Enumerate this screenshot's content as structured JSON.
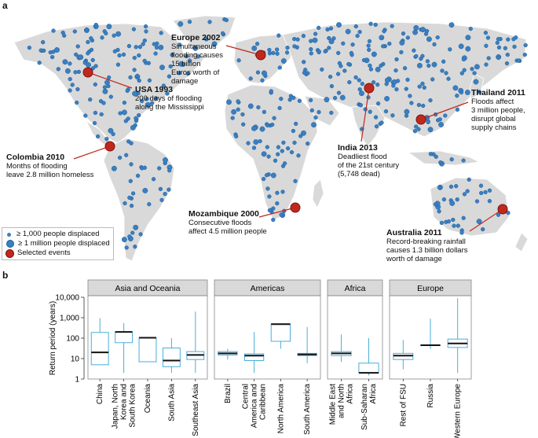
{
  "panel_a_label": "a",
  "panel_b_label": "b",
  "map": {
    "annotations": [
      {
        "id": "europe",
        "title": "Europe 2002",
        "body": [
          "Simultaneous",
          "flooding causes",
          "15 billion",
          "Euros worth of",
          "damage"
        ]
      },
      {
        "id": "usa",
        "title": "USA 1993",
        "body": [
          "200 days of flooding",
          "along the Mississippi"
        ]
      },
      {
        "id": "india",
        "title": "India 2013",
        "body": [
          "Deadliest flood",
          "of the 21st century",
          "(5,748 dead)"
        ]
      },
      {
        "id": "thailand",
        "title": "Thailand 2011",
        "body": [
          "Floods affect",
          "3 million people,",
          "disrupt global",
          "supply chains"
        ]
      },
      {
        "id": "colombia",
        "title": "Colombia 2010",
        "body": [
          "Months of flooding",
          "leave 2.8 million homeless"
        ]
      },
      {
        "id": "mozambique",
        "title": "Mozambique 2000",
        "body": [
          "Consecutive floods",
          "affect 4.5 million people"
        ]
      },
      {
        "id": "australia",
        "title": "Australia 2011",
        "body": [
          "Record-breaking rainfall",
          "causes 1.3 billion dollars",
          "worth of damage"
        ]
      }
    ],
    "legend": [
      {
        "label": "≥ 1,000 people displaced",
        "color": "#3b7fc0",
        "size": "small"
      },
      {
        "label": "≥ 1 million people displaced",
        "color": "#3b7fc0",
        "size": "large"
      },
      {
        "label": "Selected events",
        "color": "#c0281e",
        "size": "large"
      }
    ],
    "colors": {
      "land": "#d9d9d9",
      "border": "#ffffff",
      "dot": "#3b7fc0",
      "dot_stroke": "#1f5f9c",
      "event": "#c0281e"
    }
  },
  "chart_data": {
    "type": "box",
    "ylabel": "Return period (years)",
    "yscale": "log",
    "ylim": [
      1,
      10000
    ],
    "yticks": [
      "1",
      "10",
      "100",
      "1,000",
      "10,000"
    ],
    "colors": {
      "box": "#4aaed9",
      "median": "#111111",
      "header_bg": "#d9d9d9"
    },
    "groups": [
      {
        "name": "Asia and Oceania",
        "categories": [
          {
            "label": "China",
            "whisker_low": 5,
            "q1": 5,
            "median": 20,
            "q3": 190,
            "whisker_high": 950
          },
          {
            "label": "Japan, North Korea and South Korea",
            "whisker_low": 2,
            "q1": 60,
            "median": 200,
            "q3": 200,
            "whisker_high": 550
          },
          {
            "label": "Oceania",
            "whisker_low": 7,
            "q1": 7,
            "median": 105,
            "q3": 105,
            "whisker_high": 105
          },
          {
            "label": "South Asia",
            "whisker_low": 2,
            "q1": 4,
            "median": 8,
            "q3": 33,
            "whisker_high": 100
          },
          {
            "label": "Southeast Asia",
            "whisker_low": 2,
            "q1": 9,
            "median": 15,
            "q3": 22,
            "whisker_high": 2000
          }
        ]
      },
      {
        "name": "Americas",
        "categories": [
          {
            "label": "Brazil",
            "whisker_low": 9,
            "q1": 15,
            "median": 18,
            "q3": 22,
            "whisker_high": 30
          },
          {
            "label": "Central America and Caribbean",
            "whisker_low": 2,
            "q1": 8,
            "median": 14,
            "q3": 17,
            "whisker_high": 200
          },
          {
            "label": "North America",
            "whisker_low": 30,
            "q1": 70,
            "median": 480,
            "q3": 500,
            "whisker_high": 500
          },
          {
            "label": "South America",
            "whisker_low": 6,
            "q1": 14,
            "median": 16,
            "q3": 18,
            "whisker_high": 350
          }
        ]
      },
      {
        "name": "Africa",
        "categories": [
          {
            "label": "Middle East and North Africa",
            "whisker_low": 7,
            "q1": 14,
            "median": 18,
            "q3": 22,
            "whisker_high": 150
          },
          {
            "label": "Sub-Saharan Africa",
            "whisker_low": 1.5,
            "q1": 2,
            "median": 2,
            "q3": 6,
            "whisker_high": 100
          }
        ]
      },
      {
        "name": "Europe",
        "categories": [
          {
            "label": "Rest of FSU",
            "whisker_low": 3,
            "q1": 9,
            "median": 14,
            "q3": 18,
            "whisker_high": 80
          },
          {
            "label": "Russia",
            "whisker_low": 30,
            "q1": 45,
            "median": 45,
            "q3": 45,
            "whisker_high": 900
          },
          {
            "label": "Western Europe",
            "whisker_low": 2,
            "q1": 35,
            "median": 55,
            "q3": 90,
            "whisker_high": 9000
          }
        ]
      }
    ]
  }
}
